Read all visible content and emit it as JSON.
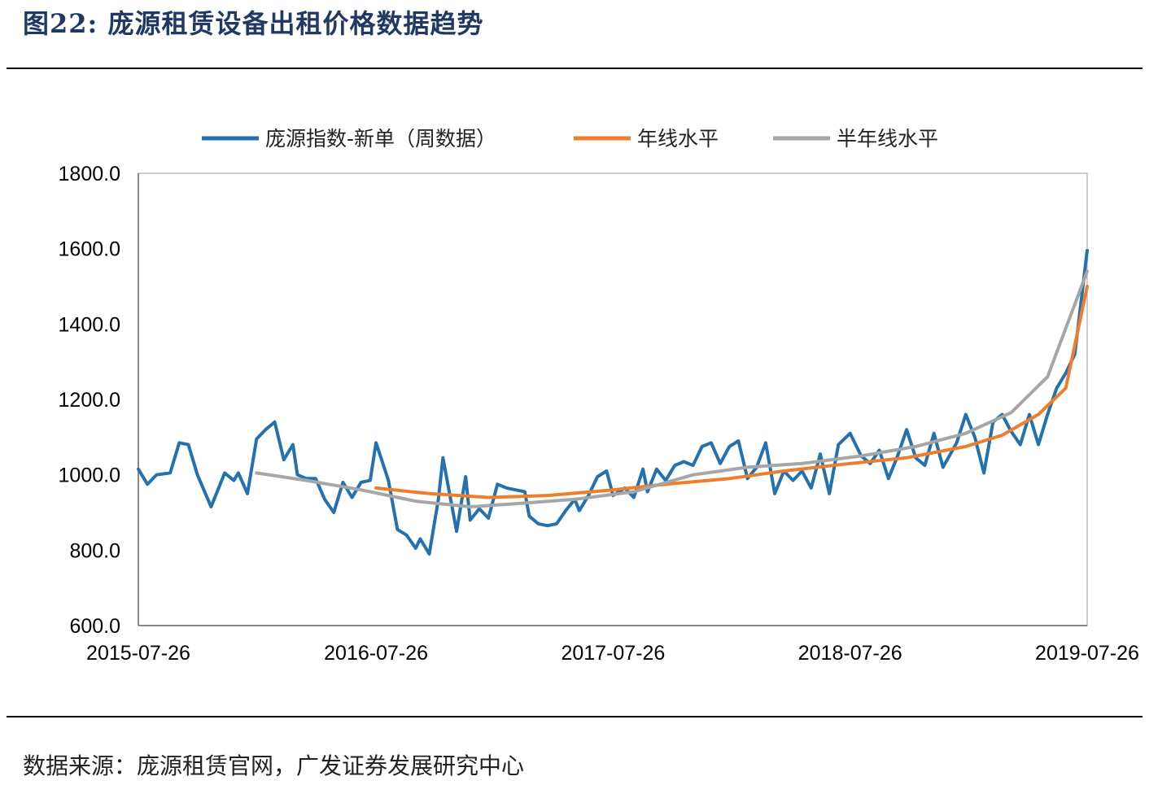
{
  "header": {
    "title": "图22:  庞源租赁设备出租价格数据趋势"
  },
  "footer": {
    "source": "数据来源：庞源租赁官网，广发证券发展研究中心"
  },
  "colors": {
    "series1": "#2471b0",
    "series2": "#ee7d2c",
    "series3": "#a6a6a6"
  },
  "chart_data": {
    "type": "line",
    "ylim": [
      600,
      1800
    ],
    "yticks": [
      "600.0",
      "800.0",
      "1000.0",
      "1200.0",
      "1400.0",
      "1600.0",
      "1800.0"
    ],
    "xrange": [
      "2015-07-26",
      "2019-07-26"
    ],
    "xticks": [
      "2015-07-26",
      "2016-07-26",
      "2017-07-26",
      "2018-07-26",
      "2019-07-26"
    ],
    "grid": false,
    "legend_position": "top",
    "series": [
      {
        "name": "庞源指数-新单（周数据）",
        "color": "#2471b0",
        "points": [
          [
            "2015-07-26",
            1015
          ],
          [
            "2015-08-09",
            975
          ],
          [
            "2015-08-23",
            1000
          ],
          [
            "2015-09-13",
            1005
          ],
          [
            "2015-09-27",
            1085
          ],
          [
            "2015-10-11",
            1080
          ],
          [
            "2015-10-25",
            1000
          ],
          [
            "2015-11-15",
            915
          ],
          [
            "2015-11-29",
            975
          ],
          [
            "2015-12-06",
            1005
          ],
          [
            "2015-12-20",
            985
          ],
          [
            "2015-12-27",
            1005
          ],
          [
            "2016-01-10",
            950
          ],
          [
            "2016-01-24",
            1095
          ],
          [
            "2016-02-07",
            1120
          ],
          [
            "2016-02-21",
            1140
          ],
          [
            "2016-03-06",
            1040
          ],
          [
            "2016-03-20",
            1080
          ],
          [
            "2016-03-27",
            1000
          ],
          [
            "2016-04-10",
            990
          ],
          [
            "2016-04-24",
            990
          ],
          [
            "2016-05-08",
            935
          ],
          [
            "2016-05-22",
            900
          ],
          [
            "2016-06-05",
            980
          ],
          [
            "2016-06-19",
            940
          ],
          [
            "2016-07-03",
            980
          ],
          [
            "2016-07-17",
            985
          ],
          [
            "2016-07-26",
            1085
          ],
          [
            "2016-08-14",
            985
          ],
          [
            "2016-08-28",
            855
          ],
          [
            "2016-09-11",
            840
          ],
          [
            "2016-09-25",
            805
          ],
          [
            "2016-10-02",
            830
          ],
          [
            "2016-10-16",
            790
          ],
          [
            "2016-10-30",
            935
          ],
          [
            "2016-11-06",
            1045
          ],
          [
            "2016-11-27",
            850
          ],
          [
            "2016-12-11",
            995
          ],
          [
            "2016-12-18",
            880
          ],
          [
            "2017-01-01",
            910
          ],
          [
            "2017-01-15",
            885
          ],
          [
            "2017-01-29",
            975
          ],
          [
            "2017-02-12",
            965
          ],
          [
            "2017-02-26",
            960
          ],
          [
            "2017-03-12",
            955
          ],
          [
            "2017-03-19",
            890
          ],
          [
            "2017-04-02",
            870
          ],
          [
            "2017-04-16",
            865
          ],
          [
            "2017-04-30",
            870
          ],
          [
            "2017-05-14",
            905
          ],
          [
            "2017-05-28",
            935
          ],
          [
            "2017-06-04",
            905
          ],
          [
            "2017-06-18",
            945
          ],
          [
            "2017-07-02",
            995
          ],
          [
            "2017-07-16",
            1010
          ],
          [
            "2017-07-26",
            945
          ],
          [
            "2017-08-13",
            965
          ],
          [
            "2017-08-27",
            940
          ],
          [
            "2017-09-10",
            1015
          ],
          [
            "2017-09-17",
            955
          ],
          [
            "2017-10-01",
            1015
          ],
          [
            "2017-10-15",
            985
          ],
          [
            "2017-10-29",
            1025
          ],
          [
            "2017-11-12",
            1035
          ],
          [
            "2017-11-26",
            1025
          ],
          [
            "2017-12-10",
            1075
          ],
          [
            "2017-12-24",
            1085
          ],
          [
            "2018-01-07",
            1030
          ],
          [
            "2018-01-21",
            1075
          ],
          [
            "2018-02-04",
            1090
          ],
          [
            "2018-02-18",
            990
          ],
          [
            "2018-03-04",
            1020
          ],
          [
            "2018-03-18",
            1085
          ],
          [
            "2018-04-01",
            950
          ],
          [
            "2018-04-15",
            1010
          ],
          [
            "2018-04-29",
            985
          ],
          [
            "2018-05-13",
            1010
          ],
          [
            "2018-05-27",
            965
          ],
          [
            "2018-06-10",
            1055
          ],
          [
            "2018-06-24",
            950
          ],
          [
            "2018-07-08",
            1080
          ],
          [
            "2018-07-26",
            1110
          ],
          [
            "2018-08-12",
            1050
          ],
          [
            "2018-08-26",
            1030
          ],
          [
            "2018-09-09",
            1065
          ],
          [
            "2018-09-23",
            990
          ],
          [
            "2018-10-07",
            1050
          ],
          [
            "2018-10-21",
            1120
          ],
          [
            "2018-11-04",
            1045
          ],
          [
            "2018-11-18",
            1025
          ],
          [
            "2018-12-02",
            1110
          ],
          [
            "2018-12-16",
            1020
          ],
          [
            "2019-01-06",
            1085
          ],
          [
            "2019-01-20",
            1160
          ],
          [
            "2019-02-03",
            1100
          ],
          [
            "2019-02-17",
            1005
          ],
          [
            "2019-03-03",
            1140
          ],
          [
            "2019-03-17",
            1160
          ],
          [
            "2019-03-31",
            1115
          ],
          [
            "2019-04-14",
            1080
          ],
          [
            "2019-04-28",
            1160
          ],
          [
            "2019-05-12",
            1080
          ],
          [
            "2019-05-26",
            1160
          ],
          [
            "2019-06-09",
            1230
          ],
          [
            "2019-06-23",
            1270
          ],
          [
            "2019-07-07",
            1320
          ],
          [
            "2019-07-26",
            1595
          ]
        ]
      },
      {
        "name": "年线水平",
        "color": "#ee7d2c",
        "points": [
          [
            "2016-07-26",
            965
          ],
          [
            "2016-10-16",
            950
          ],
          [
            "2017-01-15",
            940
          ],
          [
            "2017-04-16",
            945
          ],
          [
            "2017-07-26",
            960
          ],
          [
            "2017-10-15",
            975
          ],
          [
            "2018-01-21",
            990
          ],
          [
            "2018-04-15",
            1010
          ],
          [
            "2018-07-26",
            1030
          ],
          [
            "2018-10-21",
            1045
          ],
          [
            "2019-01-20",
            1075
          ],
          [
            "2019-03-17",
            1105
          ],
          [
            "2019-05-12",
            1160
          ],
          [
            "2019-06-23",
            1230
          ],
          [
            "2019-07-26",
            1500
          ]
        ]
      },
      {
        "name": "半年线水平",
        "color": "#a6a6a6",
        "points": [
          [
            "2016-01-24",
            1005
          ],
          [
            "2016-04-10",
            985
          ],
          [
            "2016-07-03",
            960
          ],
          [
            "2016-09-25",
            930
          ],
          [
            "2016-12-18",
            915
          ],
          [
            "2017-03-12",
            925
          ],
          [
            "2017-05-28",
            935
          ],
          [
            "2017-08-27",
            955
          ],
          [
            "2017-11-26",
            1000
          ],
          [
            "2018-02-18",
            1020
          ],
          [
            "2018-05-13",
            1030
          ],
          [
            "2018-08-12",
            1050
          ],
          [
            "2018-11-04",
            1075
          ],
          [
            "2019-01-20",
            1110
          ],
          [
            "2019-03-31",
            1165
          ],
          [
            "2019-05-26",
            1260
          ],
          [
            "2019-07-26",
            1540
          ]
        ]
      }
    ]
  }
}
